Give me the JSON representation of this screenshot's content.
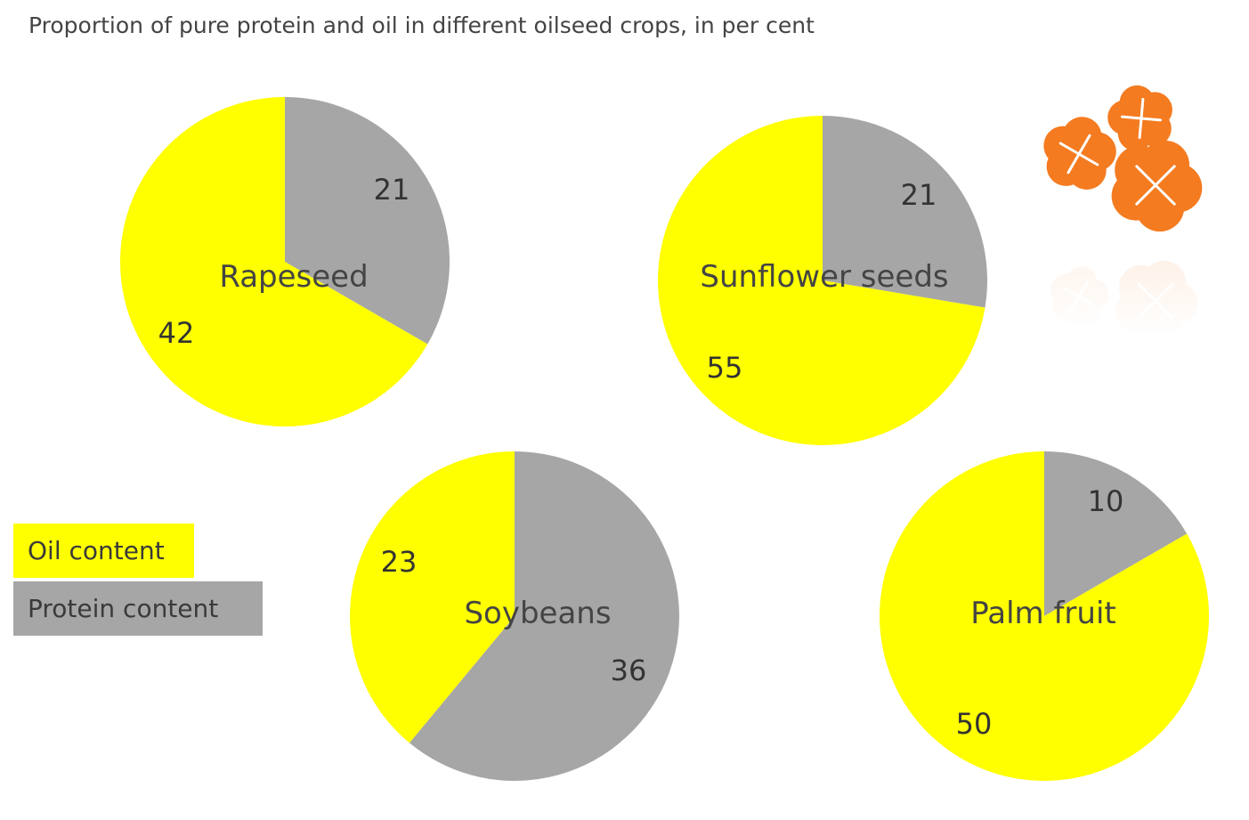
{
  "title": "Proportion of pure protein and oil in different oilseed crops, in per cent",
  "colors": {
    "oil": "#ffff00",
    "protein": "#a6a6a6",
    "flower": "#f47b20"
  },
  "legend": [
    {
      "name": "Oil content",
      "color": "#ffff00"
    },
    {
      "name": "Protein content",
      "color": "#a6a6a6"
    }
  ],
  "decoration": {
    "icon": "orange-flowers-icon"
  },
  "chart_data": [
    {
      "type": "pie",
      "title": "Rapeseed",
      "labels": [
        "Protein content",
        "Oil content"
      ],
      "values": [
        21,
        42
      ]
    },
    {
      "type": "pie",
      "title": "Sunflower seeds",
      "labels": [
        "Protein content",
        "Oil content"
      ],
      "values": [
        21,
        55
      ]
    },
    {
      "type": "pie",
      "title": "Soybeans",
      "labels": [
        "Protein content",
        "Oil content"
      ],
      "values": [
        36,
        23
      ]
    },
    {
      "type": "pie",
      "title": "Palm fruit",
      "labels": [
        "Protein content",
        "Oil content"
      ],
      "values": [
        10,
        50
      ]
    }
  ]
}
